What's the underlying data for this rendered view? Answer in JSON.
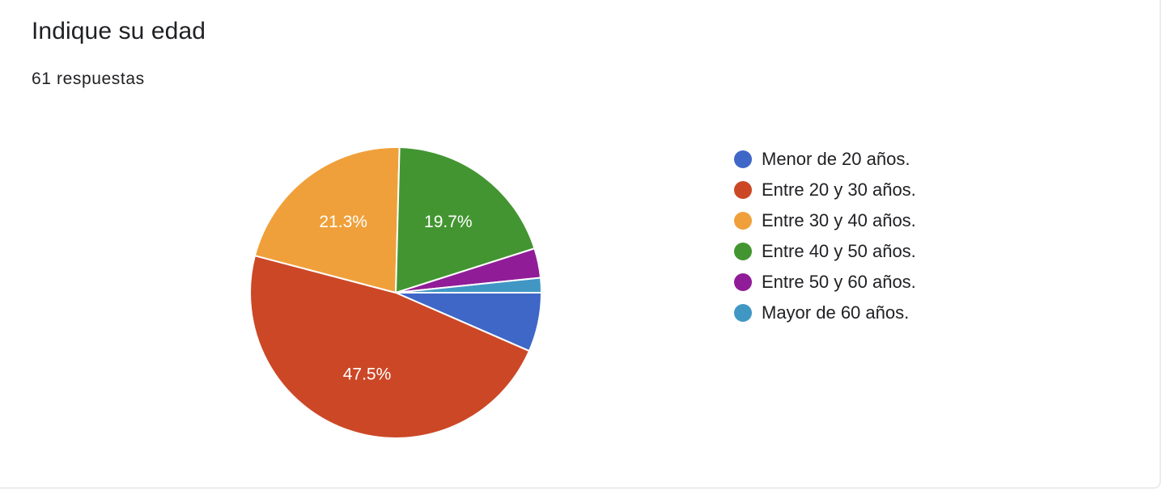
{
  "question": {
    "title": "Indique su edad",
    "responses": "61 respuestas"
  },
  "chart_data": {
    "type": "pie",
    "start": "3 o'clock, clockwise",
    "slices": [
      {
        "label": "Menor de 20 años.",
        "value": 4,
        "percent_label": "",
        "color": "#3f67c7"
      },
      {
        "label": "Entre 20 y 30 años.",
        "value": 29,
        "percent_label": "47.5%",
        "color": "#cc4726"
      },
      {
        "label": "Entre 30 y 40 años.",
        "value": 13,
        "percent_label": "21.3%",
        "color": "#f0a03a"
      },
      {
        "label": "Entre 40 y 50 años.",
        "value": 12,
        "percent_label": "19.7%",
        "color": "#439531"
      },
      {
        "label": "Entre 50 y 60 años.",
        "value": 2,
        "percent_label": "",
        "color": "#901d97"
      },
      {
        "label": "Mayor de 60 años.",
        "value": 1,
        "percent_label": "",
        "color": "#4197c4"
      }
    ],
    "legend_position": "right"
  }
}
